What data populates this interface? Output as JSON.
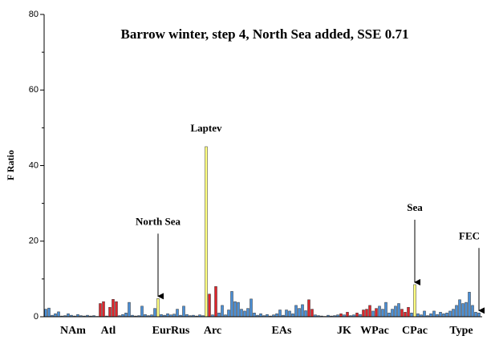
{
  "chart_data": {
    "type": "bar",
    "title": "Barrow winter, step 4, North Sea added, SSE 0.71",
    "ylabel": "F Ratio",
    "ylim": [
      0,
      80
    ],
    "yticks": [
      0,
      20,
      40,
      60,
      80
    ],
    "yticks_minor": [
      10,
      30,
      50,
      70
    ],
    "categories": [
      null,
      null,
      null,
      null,
      null,
      null,
      null,
      null,
      null,
      null,
      null,
      null,
      null,
      null,
      null,
      null,
      null,
      null,
      null,
      null,
      null,
      null,
      null,
      null,
      null,
      null,
      null,
      null,
      null,
      null,
      null,
      null,
      null,
      null,
      null,
      null,
      null,
      null,
      null,
      null,
      null,
      null,
      null,
      null,
      null,
      null,
      null,
      null,
      null,
      null,
      null,
      null,
      null,
      null,
      null,
      null,
      null,
      null,
      null,
      null,
      null,
      null,
      null,
      null,
      null,
      null,
      null,
      null,
      null,
      null,
      null,
      null,
      null,
      null,
      null,
      null,
      null,
      null,
      null,
      null,
      null,
      null,
      null,
      null,
      null,
      null,
      null,
      null,
      null,
      null,
      null,
      null,
      null,
      null,
      null,
      null,
      null,
      null,
      null,
      null,
      null,
      null,
      null,
      null,
      null,
      null,
      null,
      null,
      null,
      null,
      null,
      null,
      null,
      null,
      null,
      null,
      null,
      null,
      null,
      null,
      null,
      null,
      null,
      null,
      null,
      null,
      null,
      null,
      null,
      null,
      null,
      null,
      null,
      null,
      null,
      null
    ],
    "values": [
      2.0,
      2.3,
      0.4,
      0.8,
      1.3,
      0.2,
      0.3,
      0.8,
      0.4,
      0.2,
      0.6,
      0.3,
      0.2,
      0.4,
      0.2,
      0.3,
      0.1,
      3.5,
      4.0,
      0.2,
      2.5,
      4.6,
      4.0,
      0.3,
      0.6,
      1.0,
      3.8,
      0.4,
      0.2,
      0.3,
      2.8,
      0.6,
      0.3,
      0.5,
      2.2,
      4.8,
      0.6,
      0.4,
      0.8,
      0.5,
      0.7,
      2.0,
      0.4,
      2.8,
      0.6,
      0.3,
      0.4,
      0.2,
      0.5,
      0.3,
      45,
      6.0,
      0.5,
      8.0,
      1.0,
      3.0,
      0.5,
      1.8,
      6.7,
      4.0,
      3.8,
      2.0,
      1.5,
      2.2,
      4.7,
      1.0,
      0.4,
      0.8,
      0.3,
      0.6,
      0.2,
      0.5,
      0.8,
      1.8,
      0.4,
      1.8,
      1.5,
      0.8,
      3.0,
      2.2,
      3.2,
      1.6,
      4.5,
      2.0,
      0.5,
      0.3,
      0.2,
      0.1,
      0.4,
      0.2,
      0.3,
      0.5,
      0.8,
      0.5,
      1.2,
      0.3,
      0.5,
      1.0,
      0.6,
      1.8,
      2.0,
      3.0,
      1.5,
      2.2,
      2.8,
      2.0,
      3.8,
      1.0,
      2.0,
      2.8,
      3.5,
      2.0,
      1.2,
      2.5,
      1.0,
      8.5,
      0.8,
      0.5,
      1.5,
      0.3,
      0.8,
      1.5,
      0.6,
      1.2,
      0.8,
      1.0,
      1.5,
      2.0,
      3.0,
      4.5,
      3.5,
      3.8,
      6.5,
      3.0,
      1.2,
      1.0
    ],
    "colors": [
      "#4a8fd6",
      "#4a8fd6",
      "#4a8fd6",
      "#4a8fd6",
      "#4a8fd6",
      "#4a8fd6",
      "#4a8fd6",
      "#4a8fd6",
      "#4a8fd6",
      "#4a8fd6",
      "#4a8fd6",
      "#4a8fd6",
      "#4a8fd6",
      "#4a8fd6",
      "#4a8fd6",
      "#4a8fd6",
      "#4a8fd6",
      "#e0242b",
      "#e0242b",
      "#4a8fd6",
      "#e0242b",
      "#e0242b",
      "#e0242b",
      "#4a8fd6",
      "#4a8fd6",
      "#4a8fd6",
      "#4a8fd6",
      "#4a8fd6",
      "#4a8fd6",
      "#4a8fd6",
      "#4a8fd6",
      "#4a8fd6",
      "#4a8fd6",
      "#4a8fd6",
      "#4a8fd6",
      "#ffff80",
      "#4a8fd6",
      "#4a8fd6",
      "#4a8fd6",
      "#4a8fd6",
      "#4a8fd6",
      "#4a8fd6",
      "#4a8fd6",
      "#4a8fd6",
      "#4a8fd6",
      "#4a8fd6",
      "#4a8fd6",
      "#4a8fd6",
      "#4a8fd6",
      "#4a8fd6",
      "#ffff80",
      "#e0242b",
      "#4a8fd6",
      "#e0242b",
      "#4a8fd6",
      "#4a8fd6",
      "#4a8fd6",
      "#4a8fd6",
      "#4a8fd6",
      "#4a8fd6",
      "#4a8fd6",
      "#4a8fd6",
      "#4a8fd6",
      "#4a8fd6",
      "#4a8fd6",
      "#4a8fd6",
      "#4a8fd6",
      "#4a8fd6",
      "#4a8fd6",
      "#4a8fd6",
      "#4a8fd6",
      "#4a8fd6",
      "#4a8fd6",
      "#4a8fd6",
      "#4a8fd6",
      "#4a8fd6",
      "#4a8fd6",
      "#4a8fd6",
      "#4a8fd6",
      "#4a8fd6",
      "#4a8fd6",
      "#4a8fd6",
      "#e0242b",
      "#e0242b",
      "#4a8fd6",
      "#4a8fd6",
      "#4a8fd6",
      "#4a8fd6",
      "#4a8fd6",
      "#4a8fd6",
      "#4a8fd6",
      "#4a8fd6",
      "#e0242b",
      "#4a8fd6",
      "#e0242b",
      "#4a8fd6",
      "#4a8fd6",
      "#e0242b",
      "#4a8fd6",
      "#e0242b",
      "#e0242b",
      "#e0242b",
      "#4a8fd6",
      "#e0242b",
      "#4a8fd6",
      "#4a8fd6",
      "#4a8fd6",
      "#4a8fd6",
      "#4a8fd6",
      "#4a8fd6",
      "#4a8fd6",
      "#e0242b",
      "#e0242b",
      "#e0242b",
      "#4a8fd6",
      "#ffff80",
      "#4a8fd6",
      "#4a8fd6",
      "#4a8fd6",
      "#4a8fd6",
      "#4a8fd6",
      "#4a8fd6",
      "#4a8fd6",
      "#4a8fd6",
      "#4a8fd6",
      "#4a8fd6",
      "#4a8fd6",
      "#4a8fd6",
      "#4a8fd6",
      "#4a8fd6",
      "#4a8fd6",
      "#4a8fd6",
      "#4a8fd6",
      "#4a8fd6",
      "#4a8fd6",
      "#4a8fd6"
    ],
    "groups": [
      {
        "label": "NAm",
        "first": 5,
        "last": 12
      },
      {
        "label": "Atl",
        "first": 17,
        "last": 22
      },
      {
        "label": "EurRus",
        "first": 34,
        "last": 44
      },
      {
        "label": "Arc",
        "first": 49,
        "last": 55
      },
      {
        "label": "EAs",
        "first": 62,
        "last": 85
      },
      {
        "label": "JK",
        "first": 90,
        "last": 96
      },
      {
        "label": "WPac",
        "first": 98,
        "last": 107
      },
      {
        "label": "CPac",
        "first": 110,
        "last": 120
      },
      {
        "label": "Type",
        "first": 124,
        "last": 135
      }
    ],
    "annotations": [
      {
        "text": "Laptev",
        "bar": 50,
        "arrow": false
      },
      {
        "text": "North Sea",
        "bar": 35,
        "arrow": true
      },
      {
        "text": "Sea",
        "bar": 115,
        "arrow": true
      },
      {
        "text": "FEC",
        "bar": 135,
        "arrow": true
      }
    ]
  }
}
